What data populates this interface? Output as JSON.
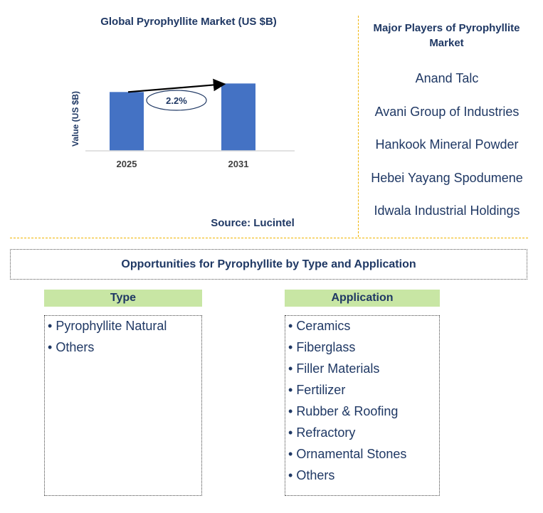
{
  "chart_data": {
    "type": "bar",
    "title": "Global Pyrophyllite Market (US $B)",
    "ylabel": "Value (US $B)",
    "categories": [
      "2025",
      "2031"
    ],
    "values": [
      0.62,
      0.71
    ],
    "ylim": [
      0,
      0.75
    ],
    "bar_color": "#4472c4",
    "annotation": {
      "text": "2.2%",
      "shape": "ellipse",
      "arrow": "from 2025 to 2031"
    },
    "grid": false
  },
  "source": "Source: Lucintel",
  "players": {
    "title": "Major Players of Pyrophyllite Market",
    "items": [
      "Anand Talc",
      "Avani Group of Industries",
      "Hankook Mineral Powder",
      "Hebei Yayang Spodumene",
      "Idwala Industrial Holdings"
    ]
  },
  "opportunities": {
    "title": "Opportunities for Pyrophyllite by Type and Application",
    "type": {
      "header": "Type",
      "items": [
        "Pyrophyllite Natural",
        "Others"
      ]
    },
    "application": {
      "header": "Application",
      "items": [
        "Ceramics",
        "Fiberglass",
        "Filler Materials",
        "Fertilizer",
        "Rubber & Roofing",
        "Refractory",
        "Ornamental Stones",
        "Others"
      ]
    }
  },
  "colors": {
    "text": "#1f3864",
    "accent_line": "#f0b400",
    "header_fill": "#c8e6a4"
  }
}
